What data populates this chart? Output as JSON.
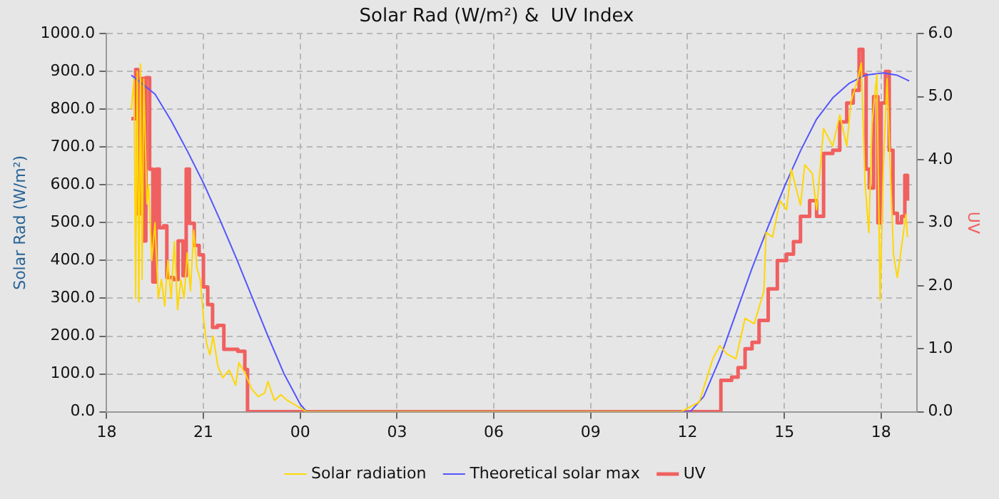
{
  "chart_data": {
    "type": "line",
    "title": "Solar Rad (W/m²) &  UV Index",
    "ylabel": "Solar Rad (W/m²)",
    "y2label": "UV",
    "xlim": [
      "--01-01T18:00",
      "--01-02T19:06"
    ],
    "xticks": [
      {
        "value": "--01-01T18:00",
        "label": "18"
      },
      {
        "value": "--01-01T21:00",
        "label": "21"
      },
      {
        "value": "--01-02T00:00",
        "label": "00"
      },
      {
        "value": "--01-02T03:00",
        "label": "03"
      },
      {
        "value": "--01-02T06:00",
        "label": "06"
      },
      {
        "value": "--01-02T09:00",
        "label": "09"
      },
      {
        "value": "--01-02T12:00",
        "label": "12"
      },
      {
        "value": "--01-02T15:00",
        "label": "15"
      },
      {
        "value": "--01-02T18:00",
        "label": "18"
      }
    ],
    "ylim": [
      0,
      1000
    ],
    "yticks": [
      {
        "value": 0,
        "label": "0.0"
      },
      {
        "value": 100,
        "label": "100.0"
      },
      {
        "value": 200,
        "label": "200.0"
      },
      {
        "value": 300,
        "label": "300.0"
      },
      {
        "value": 400,
        "label": "400.0"
      },
      {
        "value": 500,
        "label": "500.0"
      },
      {
        "value": 600,
        "label": "600.0"
      },
      {
        "value": 700,
        "label": "700.0"
      },
      {
        "value": 800,
        "label": "800.0"
      },
      {
        "value": 900,
        "label": "900.0"
      },
      {
        "value": 1000,
        "label": "1000.0"
      }
    ],
    "y2lim": [
      0,
      6
    ],
    "y2ticks": [
      {
        "value": 0,
        "label": "0.0"
      },
      {
        "value": 1,
        "label": "1.0"
      },
      {
        "value": 2,
        "label": "2.0"
      },
      {
        "value": 3,
        "label": "3.0"
      },
      {
        "value": 4,
        "label": "4.0"
      },
      {
        "value": 5,
        "label": "5.0"
      },
      {
        "value": 6,
        "label": "6.0"
      }
    ],
    "grid": true,
    "legend": "bottom",
    "marker": "none",
    "series": [
      {
        "name": "Solar radiation",
        "color": "#ffd700",
        "x": [
          "--01-01T18:46",
          "--01-01T18:51",
          "--01-01T18:54",
          "--01-01T18:57",
          "--01-01T19:00",
          "--01-01T19:03",
          "--01-01T19:06",
          "--01-01T19:09",
          "--01-01T19:15",
          "--01-01T19:18",
          "--01-01T19:24",
          "--01-01T19:30",
          "--01-01T19:36",
          "--01-01T19:42",
          "--01-01T19:48",
          "--01-01T19:54",
          "--01-01T20:00",
          "--01-01T20:06",
          "--01-01T20:12",
          "--01-01T20:18",
          "--01-01T20:24",
          "--01-01T20:30",
          "--01-01T20:36",
          "--01-01T20:42",
          "--01-01T20:48",
          "--01-01T20:54",
          "--01-01T21:00",
          "--01-01T21:06",
          "--01-01T21:12",
          "--01-01T21:18",
          "--01-01T21:27",
          "--01-01T21:36",
          "--01-01T21:48",
          "--01-01T22:00",
          "--01-01T22:06",
          "--01-01T22:18",
          "--01-01T22:30",
          "--01-01T22:42",
          "--01-01T22:54",
          "--01-01T23:00",
          "--01-01T23:12",
          "--01-01T23:24",
          "--01-01T23:36",
          "--01-01T23:48",
          "--01-02T00:00",
          "--01-02T00:12",
          "--01-02T11:48",
          "--01-02T12:22",
          "--01-02T12:47",
          "--01-02T13:00",
          "--01-02T13:13",
          "--01-02T13:30",
          "--01-02T13:47",
          "--01-02T14:04",
          "--01-02T14:22",
          "--01-02T14:26",
          "--01-02T14:38",
          "--01-02T14:52",
          "--01-02T15:04",
          "--01-02T15:13",
          "--01-02T15:30",
          "--01-02T15:38",
          "--01-02T15:52",
          "--01-02T16:00",
          "--01-02T16:13",
          "--01-02T16:30",
          "--01-02T16:43",
          "--01-02T16:56",
          "--01-02T17:04",
          "--01-02T17:17",
          "--01-02T17:23",
          "--01-02T17:30",
          "--01-02T17:37",
          "--01-02T17:43",
          "--01-02T17:52",
          "--01-02T17:58",
          "--01-02T18:04",
          "--01-02T18:11",
          "--01-02T18:17",
          "--01-02T18:23",
          "--01-02T18:30",
          "--01-02T18:38",
          "--01-02T18:46",
          "--01-02T18:49"
        ],
        "values": [
          800,
          880,
          300,
          900,
          290,
          920,
          350,
          880,
          550,
          600,
          400,
          500,
          300,
          350,
          280,
          400,
          300,
          450,
          270,
          350,
          300,
          420,
          320,
          480,
          380,
          350,
          250,
          180,
          150,
          200,
          120,
          90,
          110,
          70,
          130,
          100,
          60,
          40,
          50,
          80,
          30,
          45,
          30,
          20,
          10,
          0,
          0,
          26,
          140,
          175,
          153,
          140,
          247,
          233,
          319,
          474,
          462,
          558,
          534,
          641,
          546,
          653,
          630,
          534,
          749,
          702,
          785,
          703,
          821,
          881,
          922,
          606,
          474,
          761,
          892,
          295,
          641,
          881,
          641,
          415,
          355,
          438,
          522,
          462
        ]
      },
      {
        "name": "Theoretical solar max",
        "color": "#5555ff",
        "x": [
          "--01-01T18:46",
          "--01-01T19:30",
          "--01-01T20:00",
          "--01-01T20:30",
          "--01-01T21:00",
          "--01-01T21:30",
          "--01-01T22:00",
          "--01-01T22:30",
          "--01-01T23:00",
          "--01-01T23:30",
          "--01-02T00:00",
          "--01-02T00:12",
          "--01-02T12:05",
          "--01-02T12:30",
          "--01-02T13:00",
          "--01-02T13:30",
          "--01-02T14:00",
          "--01-02T14:30",
          "--01-02T15:00",
          "--01-02T15:30",
          "--01-02T16:00",
          "--01-02T16:30",
          "--01-02T17:00",
          "--01-02T17:30",
          "--01-02T18:04",
          "--01-02T18:30",
          "--01-02T18:52"
        ],
        "values": [
          890,
          840,
          770,
          690,
          605,
          510,
          410,
          305,
          200,
          100,
          20,
          0,
          0,
          40,
          140,
          260,
          380,
          490,
          595,
          690,
          774,
          830,
          868,
          890,
          896,
          890,
          875
        ]
      },
      {
        "name": "UV",
        "type": "step",
        "axis": "y2",
        "color": "#f06060",
        "x": [
          "--01-01T18:46",
          "--01-01T18:54",
          "--01-01T18:58",
          "--01-01T19:02",
          "--01-01T19:08",
          "--01-01T19:13",
          "--01-01T19:20",
          "--01-01T19:26",
          "--01-01T19:32",
          "--01-01T19:38",
          "--01-01T19:46",
          "--01-01T19:52",
          "--01-01T20:04",
          "--01-01T20:13",
          "--01-01T20:22",
          "--01-01T20:28",
          "--01-01T20:34",
          "--01-01T20:43",
          "--01-01T20:52",
          "--01-01T21:00",
          "--01-01T21:08",
          "--01-01T21:17",
          "--01-01T21:26",
          "--01-01T21:38",
          "--01-01T22:04",
          "--01-01T22:17",
          "--01-01T22:22",
          "--01-02T13:02",
          "--01-02T13:22",
          "--01-02T13:34",
          "--01-02T13:47",
          "--01-02T14:00",
          "--01-02T14:13",
          "--01-02T14:30",
          "--01-02T14:47",
          "--01-02T15:04",
          "--01-02T15:17",
          "--01-02T15:30",
          "--01-02T15:47",
          "--01-02T16:00",
          "--01-02T16:13",
          "--01-02T16:30",
          "--01-02T16:43",
          "--01-02T16:56",
          "--01-02T17:08",
          "--01-02T17:19",
          "--01-02T17:26",
          "--01-02T17:32",
          "--01-02T17:38",
          "--01-02T17:46",
          "--01-02T17:54",
          "--01-02T18:00",
          "--01-02T18:08",
          "--01-02T18:15",
          "--01-02T18:22",
          "--01-02T18:30",
          "--01-02T18:38",
          "--01-02T18:44",
          "--01-02T18:49"
        ],
        "values": [
          4.65,
          5.43,
          3.14,
          5.29,
          2.71,
          5.3,
          3.85,
          2.06,
          3.85,
          2.92,
          2.95,
          2.13,
          2.1,
          2.71,
          2.16,
          3.85,
          2.99,
          2.64,
          2.49,
          1.98,
          1.7,
          1.34,
          1.37,
          0.99,
          0.96,
          0.67,
          0,
          0.5,
          0.55,
          0.7,
          1.0,
          1.1,
          1.45,
          1.95,
          2.4,
          2.5,
          2.7,
          3.1,
          3.35,
          3.1,
          4.1,
          4.15,
          4.6,
          4.9,
          5.1,
          5.75,
          5.35,
          3.85,
          3.55,
          5.0,
          3.0,
          4.9,
          5.4,
          4.15,
          3.15,
          3.0,
          3.1,
          3.75,
          3.35
        ]
      }
    ]
  }
}
